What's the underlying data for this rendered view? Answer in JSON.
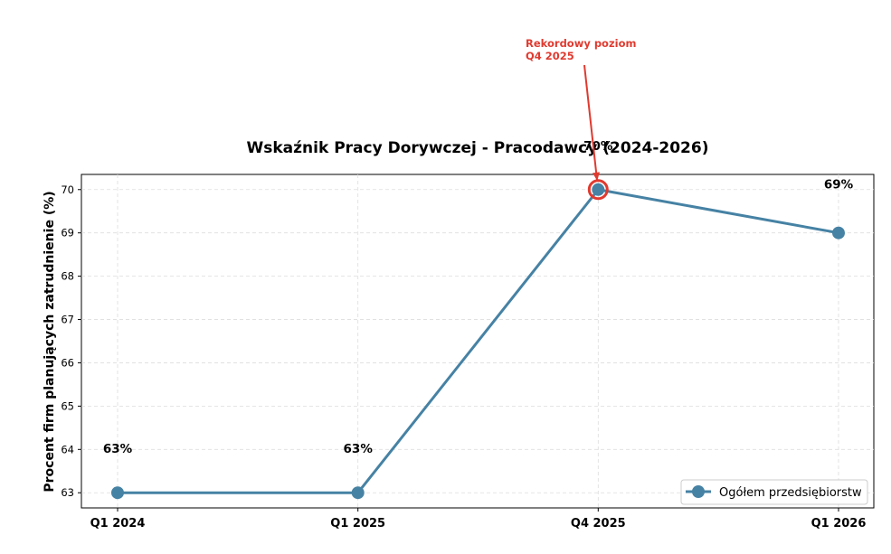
{
  "chart_data": {
    "type": "line",
    "title": "Wskaźnik Pracy Dorywczej - Pracodawcy (2024-2026)",
    "xlabel": "",
    "ylabel": "Procent firm planujących zatrudnienie (%)",
    "categories": [
      "Q1 2024",
      "Q1 2025",
      "Q4 2025",
      "Q1 2026"
    ],
    "series": [
      {
        "name": "Ogółem przedsiębiorstw",
        "values": [
          63,
          63,
          70,
          69
        ],
        "color": "#4682a4"
      }
    ],
    "data_labels": [
      "63%",
      "63%",
      "70%",
      "69%"
    ],
    "yticks": [
      63,
      64,
      65,
      66,
      67,
      68,
      69,
      70
    ],
    "ylim": [
      62.65,
      70.35
    ],
    "grid": true,
    "legend_position": "bottom-right",
    "annotation": {
      "text_lines": [
        "Rekordowy poziom",
        "Q4 2025"
      ],
      "target_category": "Q4 2025",
      "target_value": 70,
      "color": "#e03a2f"
    }
  }
}
